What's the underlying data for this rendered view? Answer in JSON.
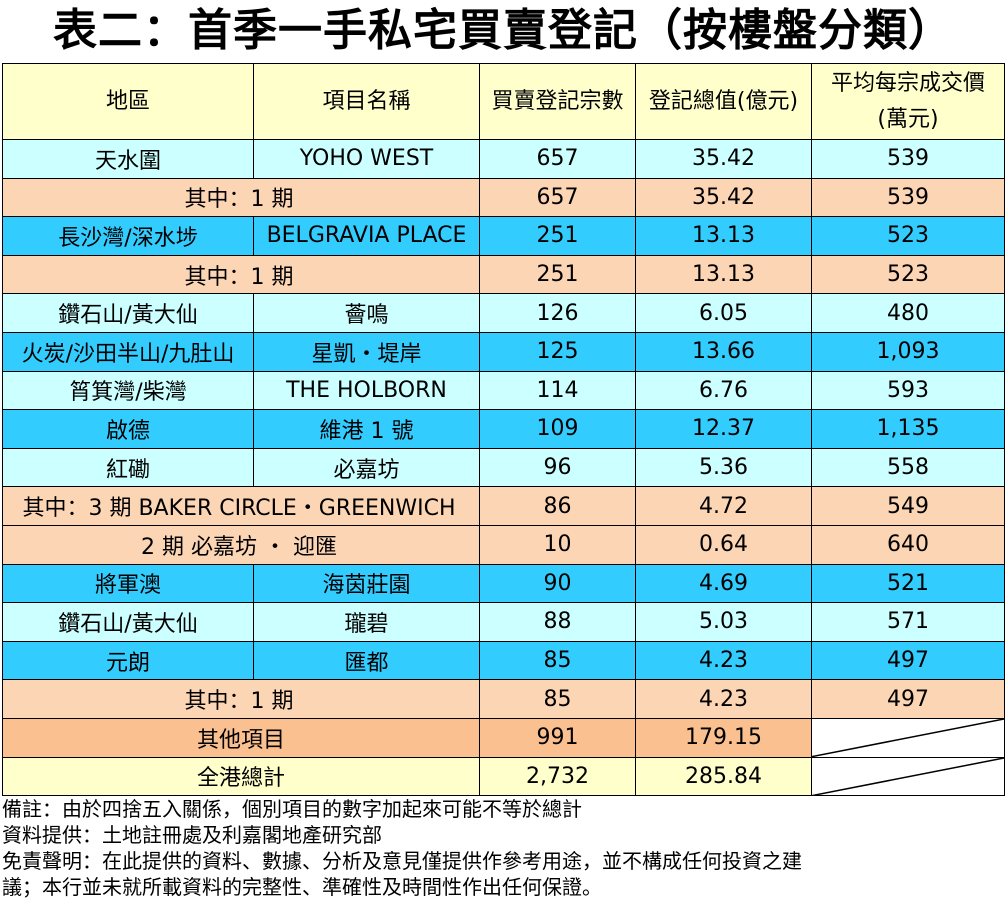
{
  "title": "表二：首季一手私宅買賣登記（按樓盤分類）",
  "headers": [
    "地區",
    "項目名稱",
    "買賣登記宗數",
    "登記總值(億元)",
    "平均每宗成交價",
    "(萬元)"
  ],
  "rows": [
    {
      "district": "天水圍",
      "project": "YOHO WEST",
      "count": "657",
      "value": "35.42",
      "avg": "539"
    },
    {
      "sub": "其中：1 期",
      "count": "657",
      "value": "35.42",
      "avg": "539"
    },
    {
      "district": "長沙灣/深水埗",
      "project": "BELGRAVIA PLACE",
      "count": "251",
      "value": "13.13",
      "avg": "523"
    },
    {
      "sub": "其中：1 期",
      "count": "251",
      "value": "13.13",
      "avg": "523"
    },
    {
      "district": "鑽石山/黃大仙",
      "project": "薈鳴",
      "count": "126",
      "value": "6.05",
      "avg": "480"
    },
    {
      "district": "火炭/沙田半山/九肚山",
      "project": "星凱・堤岸",
      "count": "125",
      "value": "13.66",
      "avg": "1,093"
    },
    {
      "district": "筲箕灣/柴灣",
      "project": "THE HOLBORN",
      "count": "114",
      "value": "6.76",
      "avg": "593"
    },
    {
      "district": "啟德",
      "project": "維港 1 號",
      "count": "109",
      "value": "12.37",
      "avg": "1,135"
    },
    {
      "district": "紅磡",
      "project": "必嘉坊",
      "count": "96",
      "value": "5.36",
      "avg": "558"
    },
    {
      "sub": "其中：3 期 BAKER CIRCLE・GREENWICH",
      "count": "86",
      "value": "4.72",
      "avg": "549"
    },
    {
      "sub": "2 期 必嘉坊 ・ 迎匯",
      "count": "10",
      "value": "0.64",
      "avg": "640"
    },
    {
      "district": "將軍澳",
      "project": "海茵莊園",
      "count": "90",
      "value": "4.69",
      "avg": "521"
    },
    {
      "district": "鑽石山/黃大仙",
      "project": "瓏碧",
      "count": "88",
      "value": "5.03",
      "avg": "571"
    },
    {
      "district": "元朗",
      "project": "匯都",
      "count": "85",
      "value": "4.23",
      "avg": "497"
    },
    {
      "sub": "其中：1 期",
      "count": "85",
      "value": "4.23",
      "avg": "497"
    }
  ],
  "others": {
    "label": "其他項目",
    "count": "991",
    "value": "179.15"
  },
  "total": {
    "label": "全港總計",
    "count": "2,732",
    "value": "285.84"
  },
  "notes": [
    "備註：由於四捨五入關係，個別項目的數字加起來可能不等於總計",
    "資料提供：土地註冊處及利嘉閣地產研究部",
    "免責聲明：在此提供的資料、數據、分析及意見僅提供作參考用途，並不構成任何投資之建",
    "議；本行並未就所載資料的完整性、準確性及時間性作出任何保證。"
  ],
  "colors": {
    "header": "#ffffcc",
    "light_row": "#ccffff",
    "dark_row": "#33ccff",
    "sub_row": "#fcd5b4",
    "others_row": "#fac090"
  }
}
